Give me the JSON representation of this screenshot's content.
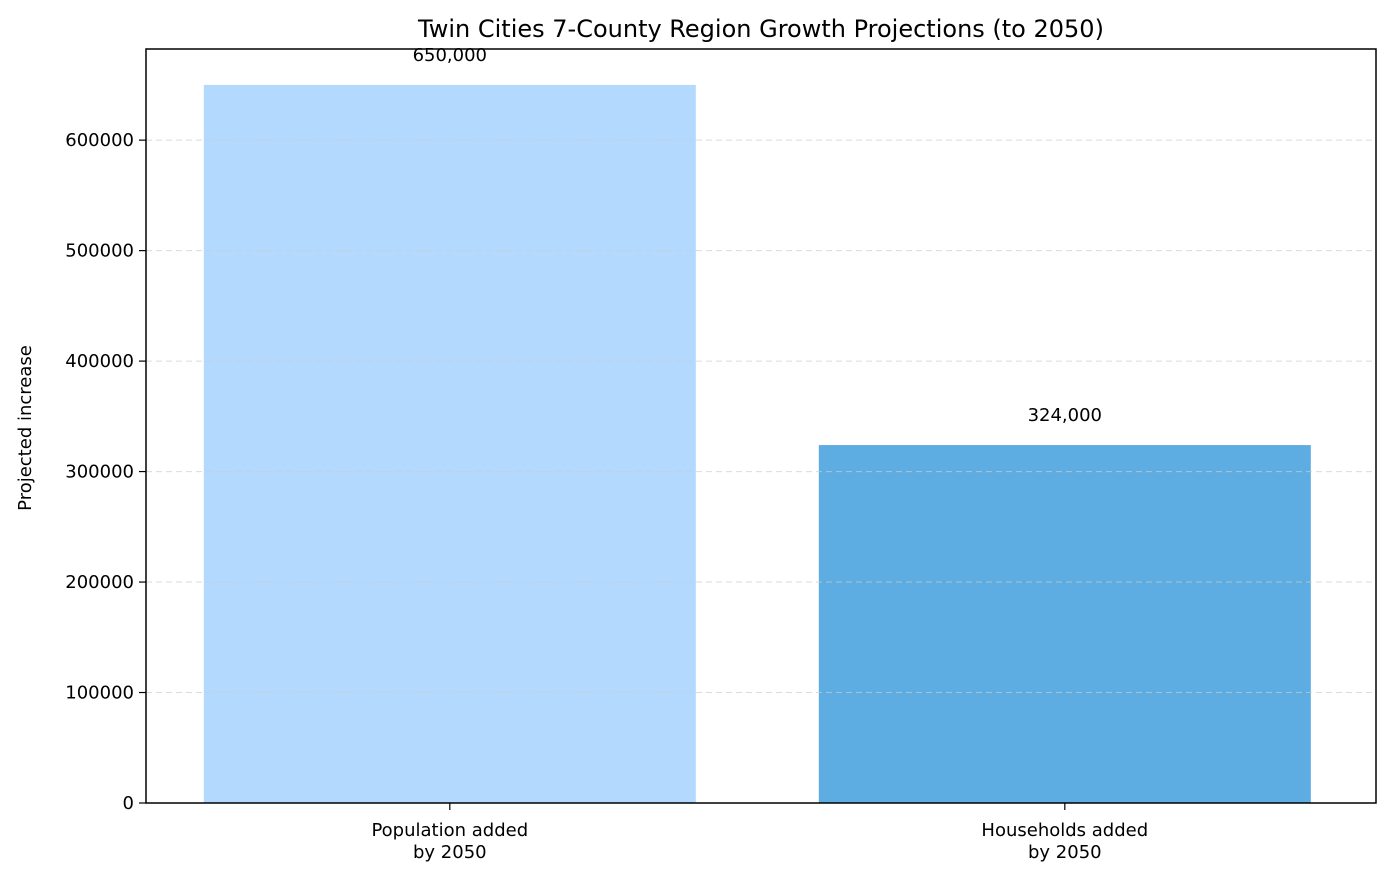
{
  "chart_data": {
    "type": "bar",
    "title": "Twin Cities 7-County Region Growth Projections (to 2050)",
    "xlabel": "",
    "ylabel": "Projected increase",
    "categories": [
      "Population added\nby 2050",
      "Households added\nby 2050"
    ],
    "values": [
      650000,
      324000
    ],
    "data_labels": [
      "650,000",
      "324,000"
    ],
    "colors": [
      "#b3d9ff",
      "#5dade2"
    ],
    "ylim": [
      0,
      682500
    ],
    "yticks": [
      0,
      100000,
      200000,
      300000,
      400000,
      500000,
      600000
    ],
    "ytick_labels": [
      "0",
      "100000",
      "200000",
      "300000",
      "400000",
      "500000",
      "600000"
    ],
    "grid": {
      "axis": "y",
      "style": "dashed",
      "color": "#cccccc"
    },
    "legend": "none"
  }
}
